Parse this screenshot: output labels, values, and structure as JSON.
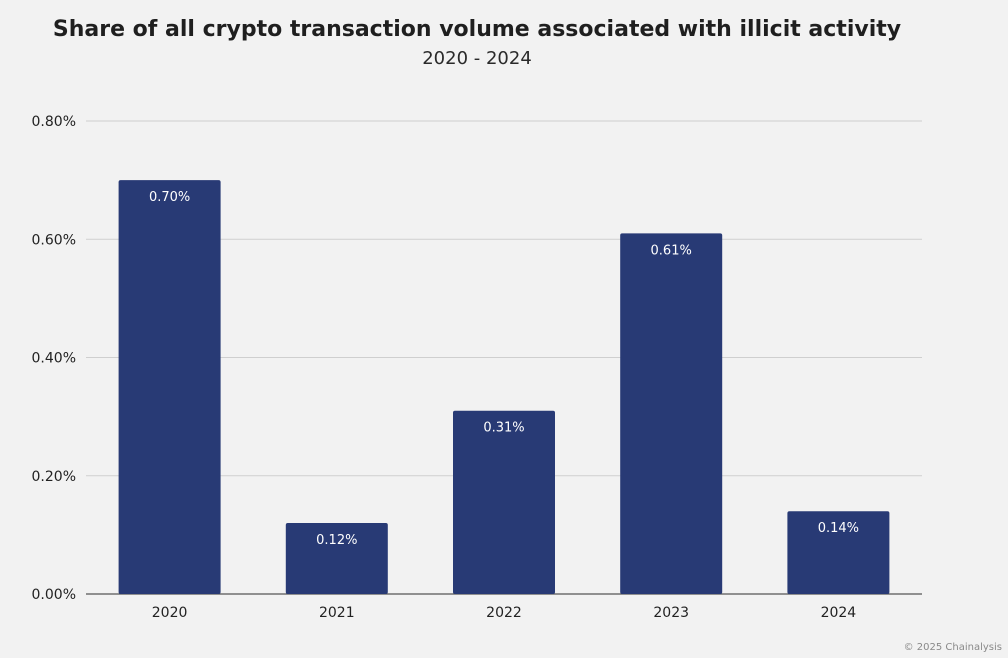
{
  "chart_data": {
    "type": "bar",
    "title": "Share of all crypto transaction volume associated with illicit activity",
    "subtitle": "2020 - 2024",
    "xlabel": "",
    "ylabel": "",
    "categories": [
      "2020",
      "2021",
      "2022",
      "2023",
      "2024"
    ],
    "values": [
      0.7,
      0.12,
      0.31,
      0.61,
      0.14
    ],
    "data_labels": [
      "0.70%",
      "0.12%",
      "0.31%",
      "0.61%",
      "0.14%"
    ],
    "ylim": [
      0,
      0.8
    ],
    "yticks": [
      0,
      0.2,
      0.4,
      0.6,
      0.8
    ],
    "ytick_labels": [
      "0.00%",
      "0.20%",
      "0.40%",
      "0.60%",
      "0.80%"
    ],
    "grid": true,
    "bar_color": "#283a75",
    "credit": "© 2025 Chainalysis"
  }
}
